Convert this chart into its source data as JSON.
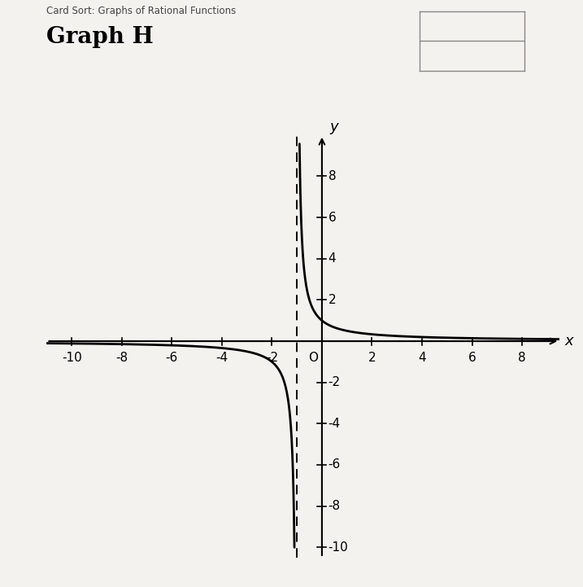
{
  "title_small": "Card Sort: Graphs of Rational Functions",
  "title_large": "Graph H",
  "vertical_asymptote": -1,
  "horizontal_asymptote": 0,
  "xlim": [
    -11,
    9.5
  ],
  "ylim": [
    -10.5,
    10
  ],
  "xticks": [
    -10,
    -8,
    -6,
    -4,
    -2,
    2,
    4,
    6,
    8
  ],
  "yticks": [
    -10,
    -8,
    -6,
    -4,
    -2,
    2,
    4,
    6,
    8
  ],
  "background_color": "#f4f2ee",
  "paper_color": "#f0ede8",
  "curve_color": "#000000",
  "axis_color": "#000000",
  "asymptote_color": "#000000",
  "title_small_fontsize": 8.5,
  "title_large_fontsize": 20,
  "tick_fontsize": 11
}
